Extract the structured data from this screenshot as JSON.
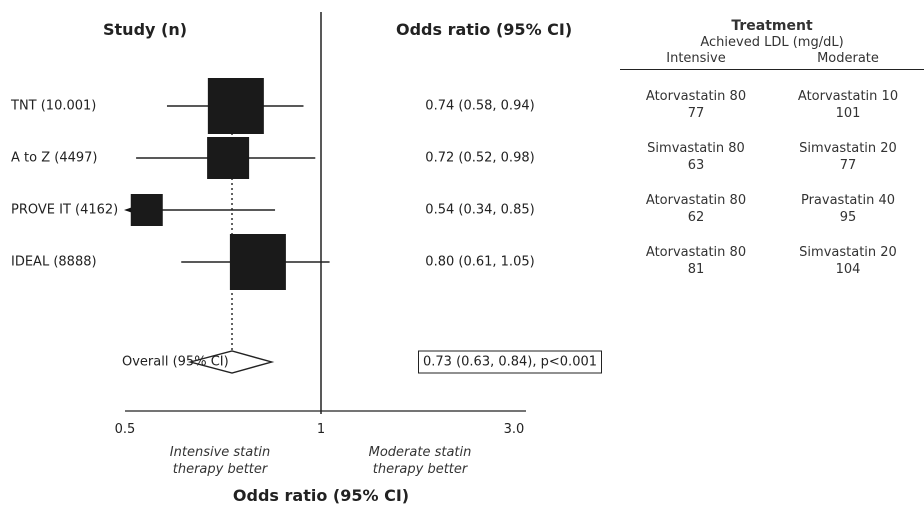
{
  "headers": {
    "study": "Study (n)",
    "odds_ratio": "Odds ratio (95% CI)"
  },
  "chart_data": {
    "type": "forest",
    "xlabel": "Odds ratio (95% CI)",
    "x_scale": "log",
    "xlim": [
      0.5,
      3.0
    ],
    "ticks": [
      {
        "value": 0.5,
        "label": "0.5"
      },
      {
        "value": 1,
        "label": "1"
      },
      {
        "value": 3.0,
        "label": "3.0"
      }
    ],
    "reference_line": 1,
    "pooled_line": 0.73,
    "studies": [
      {
        "label": "TNT (10.001)",
        "or": 0.74,
        "lo": 0.58,
        "hi": 0.94,
        "ci_text": "0.74 (0.58, 0.94)",
        "size": "large"
      },
      {
        "label": "A to Z (4497)",
        "or": 0.72,
        "lo": 0.52,
        "hi": 0.98,
        "ci_text": "0.72 (0.52, 0.98)",
        "size": "medium"
      },
      {
        "label": "PROVE IT (4162)",
        "or": 0.54,
        "lo": 0.34,
        "hi": 0.85,
        "ci_text": "0.54 (0.34, 0.85)",
        "size": "small",
        "lower_arrow": true
      },
      {
        "label": "IDEAL (8888)",
        "or": 0.8,
        "lo": 0.61,
        "hi": 1.05,
        "ci_text": "0.80 (0.61, 1.05)",
        "size": "large"
      }
    ],
    "overall": {
      "label": "Overall (95% CI)",
      "or": 0.73,
      "lo": 0.63,
      "hi": 0.84,
      "ci_text": "0.73 (0.63, 0.84), p<0.001"
    },
    "favors_left": "Intensive statin therapy better",
    "favors_right": "Moderate statin therapy better"
  },
  "treatment": {
    "title": "Treatment",
    "subtitle": "Achieved LDL (mg/dL)",
    "col_intensive": "Intensive",
    "col_moderate": "Moderate",
    "rows": [
      {
        "intensive_drug": "Atorvastatin 80",
        "intensive_ldl": "77",
        "moderate_drug": "Atorvastatin 10",
        "moderate_ldl": "101"
      },
      {
        "intensive_drug": "Simvastatin 80",
        "intensive_ldl": "63",
        "moderate_drug": "Simvastatin 20",
        "moderate_ldl": "77"
      },
      {
        "intensive_drug": "Atorvastatin 80",
        "intensive_ldl": "62",
        "moderate_drug": "Pravastatin 40",
        "moderate_ldl": "95"
      },
      {
        "intensive_drug": "Atorvastatin 80",
        "intensive_ldl": "81",
        "moderate_drug": "Simvastatin 20",
        "moderate_ldl": "104"
      }
    ]
  }
}
